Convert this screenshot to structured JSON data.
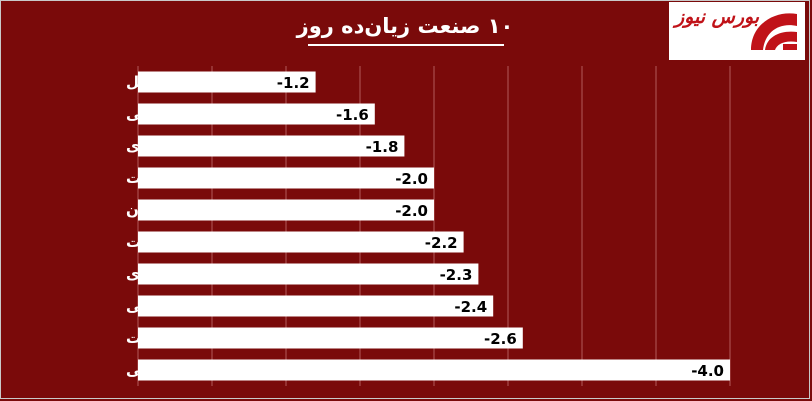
{
  "chart_data": {
    "type": "bar",
    "orientation": "horizontal",
    "title": "۱۰ صنعت زیان‌ده روز",
    "xlabel": "",
    "ylabel": "",
    "categories": [
      "سایر حمل و نقل",
      "خرده فروشی",
      "انبوه سازی",
      "زراعت",
      "هتل و رستوران",
      "خودرو و قطعات",
      "محصولات کاغذی",
      "محصولات چوبی",
      "منسوجات",
      "پیمانکاری صنعتی"
    ],
    "values": [
      -1.2,
      -1.6,
      -1.8,
      -2.0,
      -2.0,
      -2.2,
      -2.3,
      -2.4,
      -2.6,
      -4.0
    ],
    "value_labels": [
      "-1.2",
      "-1.6",
      "-1.8",
      "-2.0",
      "-2.0",
      "-2.2",
      "-2.3",
      "-2.4",
      "-2.6",
      "-4.0"
    ],
    "xlim": [
      0,
      -4.5
    ],
    "grid": true,
    "legend": "none"
  },
  "logo": {
    "text": "بورس نیوز"
  },
  "colors": {
    "background": "#7a0a0a",
    "bar": "#ffffff",
    "grid": "#b35a5a",
    "logo_red": "#c01218"
  }
}
